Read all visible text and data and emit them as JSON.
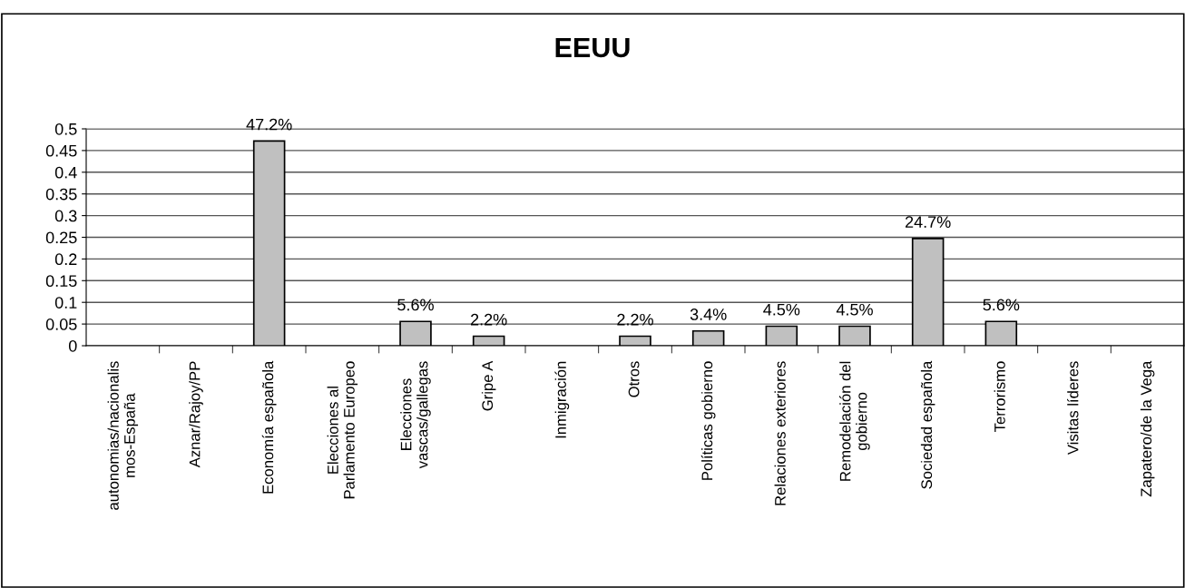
{
  "chart_data": {
    "type": "bar",
    "title": "EEUU",
    "categories": [
      "autonomias/nacionalis\nmos-España",
      "Aznar/Rajoy/PP",
      "Economía española",
      "Elecciones al\nParlamento Europeo",
      "Elecciones\nvascas/gallegas",
      "Gripe A",
      "Inmigración",
      "Otros",
      "Políticas gobierno",
      "Relaciones exteriores",
      "Remodelación del\ngobierno",
      "Sociedad española",
      "Terrorismo",
      "Visitas líderes",
      "Zapatero/de la Vega"
    ],
    "values": [
      0,
      0,
      0.472,
      0,
      0.056,
      0.022,
      0,
      0.022,
      0.034,
      0.045,
      0.045,
      0.247,
      0.056,
      0,
      0
    ],
    "value_labels": [
      null,
      null,
      "47.2%",
      null,
      "5.6%",
      "2.2%",
      null,
      "2.2%",
      "3.4%",
      "4.5%",
      "4.5%",
      "24.7%",
      "5.6%",
      null,
      null
    ],
    "color": "#c0c0c0",
    "ylim": [
      0,
      0.5
    ],
    "yticks": [
      0,
      0.05,
      0.1,
      0.15,
      0.2,
      0.25,
      0.3,
      0.35,
      0.4,
      0.45,
      0.5
    ],
    "grid": "y",
    "legend": false
  }
}
